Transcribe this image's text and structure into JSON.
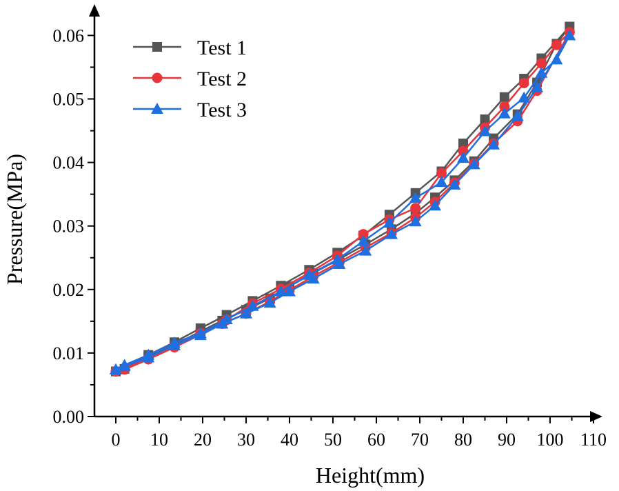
{
  "chart_data": {
    "type": "line",
    "title": "",
    "xlabel": "Height(mm)",
    "ylabel": "Pressure(MPa)",
    "xlim": [
      -5,
      110
    ],
    "ylim": [
      0,
      0.065
    ],
    "x_ticks": [
      0,
      10,
      20,
      30,
      40,
      50,
      60,
      70,
      80,
      90,
      100,
      110
    ],
    "x_tick_labels": [
      "0",
      "10",
      "20",
      "30",
      "40",
      "50",
      "60",
      "70",
      "80",
      "90",
      "100",
      "110"
    ],
    "y_ticks": [
      0,
      0.01,
      0.02,
      0.03,
      0.04,
      0.05,
      0.06
    ],
    "y_tick_labels": [
      "0.00",
      "0.01",
      "0.02",
      "0.03",
      "0.04",
      "0.05",
      "0.06"
    ],
    "grid": false,
    "legend_position": "top-left",
    "series": [
      {
        "name": "Test 1",
        "color": "#555555",
        "marker": "square",
        "points": [
          [
            0,
            0.0071
          ],
          [
            7.5,
            0.0097
          ],
          [
            13.5,
            0.0117
          ],
          [
            19.5,
            0.0139
          ],
          [
            25.5,
            0.016
          ],
          [
            31.5,
            0.0182
          ],
          [
            38,
            0.0206
          ],
          [
            44.5,
            0.0231
          ],
          [
            51,
            0.0258
          ],
          [
            57,
            0.0285
          ],
          [
            63,
            0.0318
          ],
          [
            69,
            0.0352
          ],
          [
            75,
            0.0386
          ],
          [
            80,
            0.043
          ],
          [
            85,
            0.0468
          ],
          [
            89.5,
            0.0503
          ],
          [
            94,
            0.0532
          ],
          [
            98,
            0.0564
          ],
          [
            104.5,
            0.0614
          ],
          [
            101.5,
            0.0587
          ],
          [
            97,
            0.0526
          ],
          [
            92.5,
            0.0476
          ],
          [
            87,
            0.0438
          ],
          [
            82.5,
            0.0402
          ],
          [
            78,
            0.0372
          ],
          [
            73.5,
            0.0345
          ],
          [
            69,
            0.032
          ],
          [
            63.5,
            0.0295
          ],
          [
            57.5,
            0.0271
          ],
          [
            51.5,
            0.0248
          ],
          [
            45.5,
            0.0226
          ],
          [
            40,
            0.0205
          ],
          [
            35.5,
            0.0186
          ],
          [
            30,
            0.0168
          ],
          [
            24.5,
            0.0151
          ],
          [
            19.5,
            0.0134
          ],
          [
            13.5,
            0.0113
          ],
          [
            7.5,
            0.0094
          ],
          [
            2,
            0.0075
          ],
          [
            0,
            0.0071
          ]
        ]
      },
      {
        "name": "Test 2",
        "color": "#e8353b",
        "marker": "circle",
        "points": [
          [
            0,
            0.0071
          ],
          [
            7.5,
            0.0092
          ],
          [
            13.5,
            0.0111
          ],
          [
            19.5,
            0.0131
          ],
          [
            25.5,
            0.0152
          ],
          [
            31.5,
            0.0178
          ],
          [
            38,
            0.0201
          ],
          [
            44.5,
            0.0226
          ],
          [
            51,
            0.0253
          ],
          [
            57,
            0.0287
          ],
          [
            63,
            0.031
          ],
          [
            69,
            0.0328
          ],
          [
            75,
            0.0383
          ],
          [
            80,
            0.0418
          ],
          [
            85,
            0.0455
          ],
          [
            89.5,
            0.0488
          ],
          [
            94,
            0.0525
          ],
          [
            98,
            0.0556
          ],
          [
            101.5,
            0.0585
          ],
          [
            104.5,
            0.0605
          ],
          [
            97,
            0.0513
          ],
          [
            92.5,
            0.0465
          ],
          [
            87,
            0.043
          ],
          [
            82.5,
            0.0398
          ],
          [
            78,
            0.0368
          ],
          [
            73.5,
            0.0338
          ],
          [
            69,
            0.0313
          ],
          [
            63.5,
            0.0289
          ],
          [
            57.5,
            0.0266
          ],
          [
            51.5,
            0.0243
          ],
          [
            45.5,
            0.0221
          ],
          [
            40,
            0.0199
          ],
          [
            35.5,
            0.0181
          ],
          [
            30,
            0.0162
          ],
          [
            24.5,
            0.0146
          ],
          [
            19.5,
            0.0129
          ],
          [
            13.5,
            0.0109
          ],
          [
            7.5,
            0.009
          ],
          [
            2,
            0.0074
          ],
          [
            0,
            0.0071
          ]
        ]
      },
      {
        "name": "Test 3",
        "color": "#1f6fe0",
        "marker": "triangle",
        "points": [
          [
            0,
            0.0074
          ],
          [
            2,
            0.0081
          ],
          [
            7.5,
            0.0097
          ],
          [
            13.5,
            0.0116
          ],
          [
            19.5,
            0.0131
          ],
          [
            25.5,
            0.0153
          ],
          [
            31.5,
            0.0174
          ],
          [
            38,
            0.0197
          ],
          [
            44.5,
            0.0223
          ],
          [
            51,
            0.0247
          ],
          [
            57,
            0.0276
          ],
          [
            63,
            0.0305
          ],
          [
            69,
            0.0344
          ],
          [
            75,
            0.0369
          ],
          [
            80,
            0.0407
          ],
          [
            85,
            0.0449
          ],
          [
            89.5,
            0.0477
          ],
          [
            94,
            0.0502
          ],
          [
            98,
            0.0541
          ],
          [
            101.5,
            0.0562
          ],
          [
            104.5,
            0.06
          ],
          [
            97,
            0.0518
          ],
          [
            92.5,
            0.0473
          ],
          [
            87,
            0.0428
          ],
          [
            82.5,
            0.0397
          ],
          [
            78,
            0.0365
          ],
          [
            73.5,
            0.0332
          ],
          [
            69,
            0.0307
          ],
          [
            63.5,
            0.0287
          ],
          [
            57.5,
            0.0261
          ],
          [
            51.5,
            0.024
          ],
          [
            45.5,
            0.0217
          ],
          [
            40,
            0.0197
          ],
          [
            35.5,
            0.0179
          ],
          [
            30,
            0.0162
          ],
          [
            24.5,
            0.0146
          ],
          [
            19.5,
            0.0128
          ],
          [
            13.5,
            0.0112
          ],
          [
            7.5,
            0.0093
          ],
          [
            2,
            0.0079
          ],
          [
            0,
            0.0074
          ]
        ]
      }
    ]
  }
}
